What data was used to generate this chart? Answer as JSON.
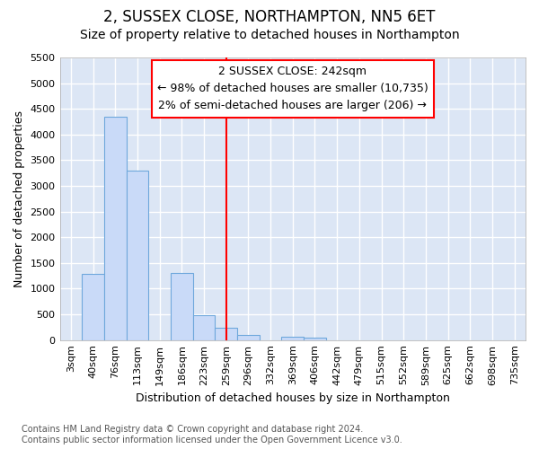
{
  "title1": "2, SUSSEX CLOSE, NORTHAMPTON, NN5 6ET",
  "title2": "Size of property relative to detached houses in Northampton",
  "xlabel": "Distribution of detached houses by size in Northampton",
  "ylabel": "Number of detached properties",
  "bin_labels": [
    "3sqm",
    "40sqm",
    "76sqm",
    "113sqm",
    "149sqm",
    "186sqm",
    "223sqm",
    "259sqm",
    "296sqm",
    "332sqm",
    "369sqm",
    "406sqm",
    "442sqm",
    "479sqm",
    "515sqm",
    "552sqm",
    "589sqm",
    "625sqm",
    "662sqm",
    "698sqm",
    "735sqm"
  ],
  "bar_values": [
    0,
    1280,
    4350,
    3300,
    0,
    1300,
    480,
    240,
    100,
    0,
    70,
    50,
    0,
    0,
    0,
    0,
    0,
    0,
    0,
    0,
    0
  ],
  "bar_color": "#c9daf8",
  "bar_edgecolor": "#6fa8dc",
  "vline_x": 7.0,
  "vline_color": "red",
  "ann_line1": "2 SUSSEX CLOSE: 242sqm",
  "ann_line2": "← 98% of detached houses are smaller (10,735)",
  "ann_line3": "2% of semi-detached houses are larger (206) →",
  "ylim_max": 5500,
  "yticks": [
    0,
    500,
    1000,
    1500,
    2000,
    2500,
    3000,
    3500,
    4000,
    4500,
    5000,
    5500
  ],
  "footnote": "Contains HM Land Registry data © Crown copyright and database right 2024.\nContains public sector information licensed under the Open Government Licence v3.0.",
  "plot_bg": "#dce6f5",
  "fig_bg": "#ffffff",
  "title1_fontsize": 12,
  "title2_fontsize": 10,
  "ylabel_fontsize": 9,
  "xlabel_fontsize": 9,
  "tick_fontsize": 8,
  "ann_fontsize": 9,
  "footnote_fontsize": 7
}
